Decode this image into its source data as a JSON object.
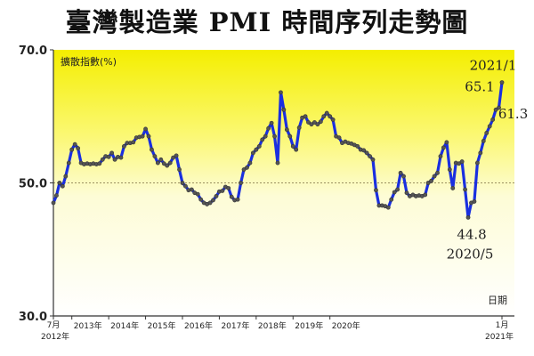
{
  "chart_data": {
    "type": "line",
    "title": "臺灣製造業 PMI 時間序列走勢圖",
    "ylabel": "擴散指數(%)",
    "xlabel": "日期",
    "ylim": [
      30,
      70
    ],
    "yticks": [
      "30.0",
      "50.0",
      "70.0"
    ],
    "reference_line": 50,
    "grid": false,
    "x_start_label": [
      "7月",
      "2012年"
    ],
    "x_end_label": [
      "1月",
      "2021年"
    ],
    "year_labels": [
      "2013年",
      "2014年",
      "2015年",
      "2016年",
      "2017年",
      "2018年",
      "2019年",
      "2020年"
    ],
    "series": [
      {
        "values": [
          47.0,
          48.1,
          50.0,
          49.5,
          51.0,
          53.0,
          55.0,
          55.8,
          55.2,
          53.0,
          52.8,
          52.9,
          52.8,
          52.9,
          52.8,
          52.9,
          53.5,
          54.0,
          53.9,
          54.5,
          53.5,
          53.9,
          53.8,
          55.5,
          56.0,
          56.0,
          56.1,
          56.8,
          56.9,
          57.0,
          58.1,
          57.0,
          55.0,
          54.0,
          53.0,
          53.5,
          52.9,
          52.6,
          53.0,
          53.8,
          54.1,
          52.0,
          50.0,
          49.5,
          48.9,
          49.0,
          48.5,
          48.3,
          47.5,
          47.0,
          46.8,
          47.0,
          47.4,
          48.0,
          48.7,
          48.8,
          49.4,
          49.2,
          47.9,
          47.4,
          47.5,
          50.0,
          52.0,
          52.3,
          53.0,
          54.5,
          55.0,
          55.5,
          56.5,
          57.0,
          58.2,
          59.0,
          57.0,
          53.0,
          63.6,
          61.0,
          58.0,
          57.0,
          55.5,
          55.0,
          58.3,
          59.8,
          60.0,
          59.1,
          58.8,
          59.1,
          58.8,
          59.2,
          60.0,
          60.5,
          60.0,
          59.5,
          57.0,
          56.8,
          56.0,
          56.2,
          56.0,
          55.9,
          55.7,
          55.5,
          55.0,
          54.9,
          54.5,
          54.0,
          53.5,
          48.9,
          46.6,
          46.6,
          46.5,
          46.3,
          47.5,
          48.6,
          49.0,
          51.5,
          51.0,
          48.5,
          48.0,
          48.2,
          48.0,
          48.1,
          48.0,
          48.2,
          50.0,
          50.3,
          51.0,
          51.5,
          54.0,
          55.3,
          56.1,
          52.0,
          49.2,
          53.0,
          52.9,
          53.2,
          49.0,
          44.8,
          47.0,
          47.2,
          53.0,
          54.5,
          56.3,
          57.5,
          58.5,
          59.5,
          61.0,
          61.3,
          65.1
        ]
      }
    ],
    "annotations": [
      {
        "value": "2021/1",
        "subtext": "65.1"
      },
      {
        "value": "61.3"
      },
      {
        "value": "44.8",
        "subtext": "2020/5"
      }
    ]
  }
}
